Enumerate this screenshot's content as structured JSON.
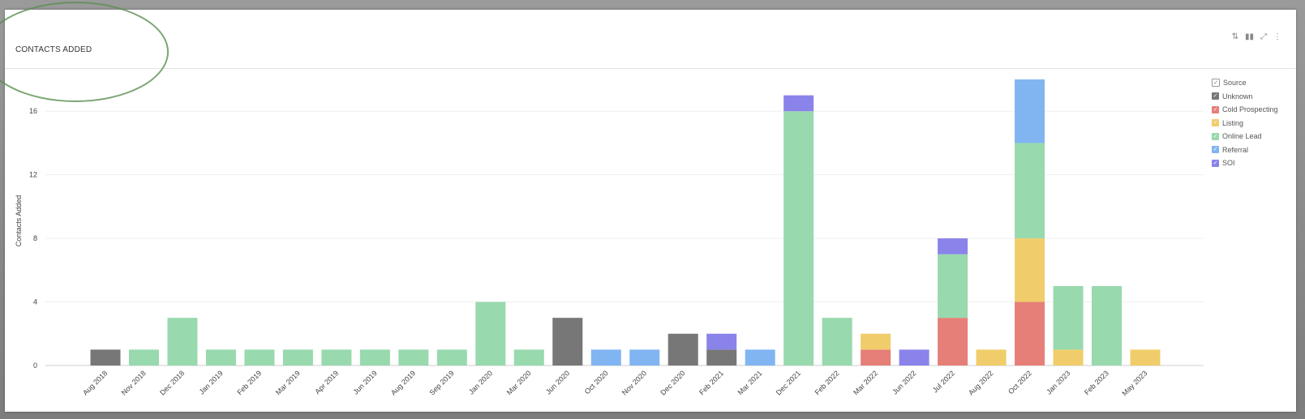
{
  "panel": {
    "title": "CONTACTS ADDED",
    "toolbar": {
      "sort_icon": "⇅",
      "chart_icon": "▮▮",
      "expand_icon": "⤢",
      "more_icon": "⋮"
    }
  },
  "legend": {
    "header": "Source",
    "checkmark": "✓"
  },
  "chart_data": {
    "type": "bar",
    "stacked": true,
    "ylabel": "Contacts Added",
    "xlabel": "",
    "ylim": [
      0,
      18
    ],
    "yticks": [
      0,
      4,
      8,
      12,
      16
    ],
    "grid": true,
    "legend_placement": "right",
    "categories": [
      "Aug 2018",
      "Nov 2018",
      "Dec 2018",
      "Jan 2019",
      "Feb 2019",
      "Mar 2019",
      "Apr 2019",
      "Jun 2019",
      "Aug 2019",
      "Sep 2019",
      "Jan 2020",
      "Mar 2020",
      "Jun 2020",
      "Oct 2020",
      "Nov 2020",
      "Dec 2020",
      "Feb 2021",
      "Mar 2021",
      "Dec 2021",
      "Feb 2022",
      "Mar 2022",
      "Jun 2022",
      "Jul 2022",
      "Aug 2022",
      "Oct 2022",
      "Jan 2023",
      "Feb 2023",
      "May 2023"
    ],
    "series": [
      {
        "name": "Unknown",
        "color": "#777777",
        "values": [
          1,
          0,
          0,
          0,
          0,
          0,
          0,
          0,
          0,
          0,
          0,
          0,
          3,
          0,
          0,
          2,
          1,
          0,
          0,
          0,
          0,
          0,
          0,
          0,
          0,
          0,
          0,
          0
        ]
      },
      {
        "name": "Cold Prospecting",
        "color": "#e57f78",
        "values": [
          0,
          0,
          0,
          0,
          0,
          0,
          0,
          0,
          0,
          0,
          0,
          0,
          0,
          0,
          0,
          0,
          0,
          0,
          0,
          0,
          1,
          0,
          3,
          0,
          4,
          0,
          0,
          0
        ]
      },
      {
        "name": "Listing",
        "color": "#f0cd6a",
        "values": [
          0,
          0,
          0,
          0,
          0,
          0,
          0,
          0,
          0,
          0,
          0,
          0,
          0,
          0,
          0,
          0,
          0,
          0,
          0,
          0,
          1,
          0,
          0,
          1,
          4,
          1,
          0,
          1
        ]
      },
      {
        "name": "Online Lead",
        "color": "#98d9ae",
        "values": [
          0,
          1,
          3,
          1,
          1,
          1,
          1,
          1,
          1,
          1,
          4,
          1,
          0,
          0,
          0,
          0,
          0,
          0,
          16,
          3,
          0,
          0,
          4,
          0,
          6,
          4,
          5,
          0
        ]
      },
      {
        "name": "Referral",
        "color": "#80b5f2",
        "values": [
          0,
          0,
          0,
          0,
          0,
          0,
          0,
          0,
          0,
          0,
          0,
          0,
          0,
          1,
          1,
          0,
          0,
          1,
          0,
          0,
          0,
          0,
          0,
          0,
          4,
          0,
          0,
          0
        ]
      },
      {
        "name": "SOI",
        "color": "#8a83ea",
        "values": [
          0,
          0,
          0,
          0,
          0,
          0,
          0,
          0,
          0,
          0,
          0,
          0,
          0,
          0,
          0,
          0,
          1,
          0,
          1,
          0,
          0,
          1,
          1,
          0,
          0,
          0,
          0,
          0
        ]
      }
    ]
  }
}
